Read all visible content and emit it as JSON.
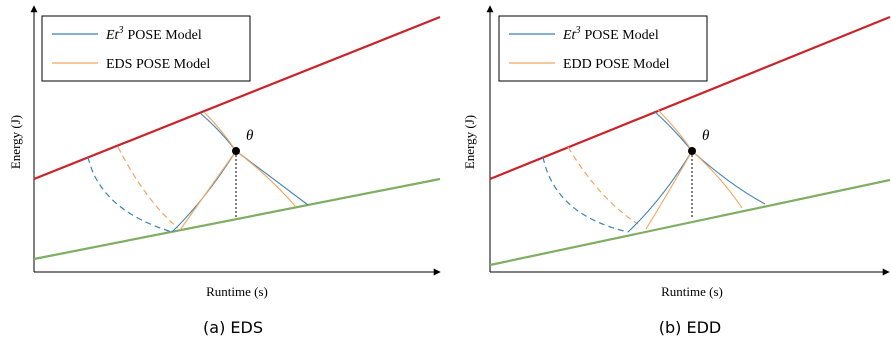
{
  "colors": {
    "et3": "#3b82b6",
    "pose": "#f4a460",
    "upper": "#cc2229",
    "lower": "#7fae62",
    "axis": "#000000"
  },
  "panels": [
    {
      "legend": {
        "item1_main": "Et",
        "item1_sup": "3",
        "item1_rest": "POSE Model",
        "item2": "EDS POSE Model"
      },
      "axes": {
        "xlabel": "Runtime (s)",
        "ylabel": "Energy (J)"
      },
      "theta_label": "θ",
      "caption": "(a) EDS"
    },
    {
      "legend": {
        "item1_main": "Et",
        "item1_sup": "3",
        "item1_rest": "POSE Model",
        "item2": "EDD POSE Model"
      },
      "axes": {
        "xlabel": "Runtime (s)",
        "ylabel": "Energy (J)"
      },
      "theta_label": "θ",
      "caption": "(b) EDD"
    }
  ]
}
